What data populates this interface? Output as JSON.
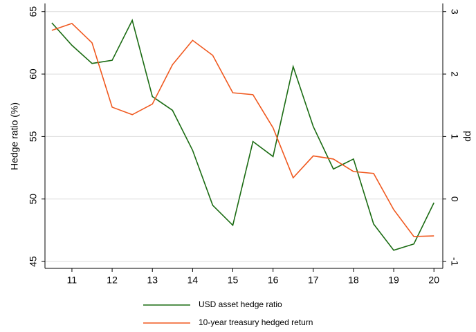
{
  "chart_data": {
    "type": "line",
    "x": [
      10.5,
      11,
      11.5,
      12,
      12.5,
      13,
      13.5,
      14,
      14.5,
      15,
      15.5,
      16,
      16.5,
      17,
      17.5,
      18,
      18.5,
      19,
      19.5,
      20
    ],
    "xlim": [
      10.33,
      20.22
    ],
    "xticks": [
      11,
      12,
      13,
      14,
      15,
      16,
      17,
      18,
      19,
      20
    ],
    "ylabel": "Hedge ratio (%)",
    "ylim": [
      44.45,
      65.65
    ],
    "yticks": [
      45,
      50,
      55,
      60,
      65
    ],
    "y2label": "pp",
    "y2lim": [
      -1.11,
      3.13
    ],
    "y2ticks": [
      -1,
      0,
      1,
      2,
      3
    ],
    "grid": true,
    "legend": "bottom",
    "series": [
      {
        "name": "USD asset hedge ratio",
        "color": "#1a6b12",
        "values": [
          64.1,
          62.3,
          60.85,
          61.1,
          64.3,
          58.2,
          57.1,
          53.9,
          49.5,
          47.9,
          54.6,
          53.4,
          60.6,
          55.8,
          52.4,
          53.2,
          48.0,
          45.9,
          46.4,
          49.7
        ]
      },
      {
        "name": "10-year treasury hedged return",
        "color": "#f0581e",
        "axis": "y2",
        "values": [
          2.7,
          2.81,
          2.5,
          1.47,
          1.35,
          1.52,
          2.15,
          2.54,
          2.3,
          1.7,
          1.67,
          1.14,
          0.34,
          0.69,
          0.64,
          0.44,
          0.41,
          -0.17,
          -0.6,
          -0.59
        ]
      }
    ]
  }
}
